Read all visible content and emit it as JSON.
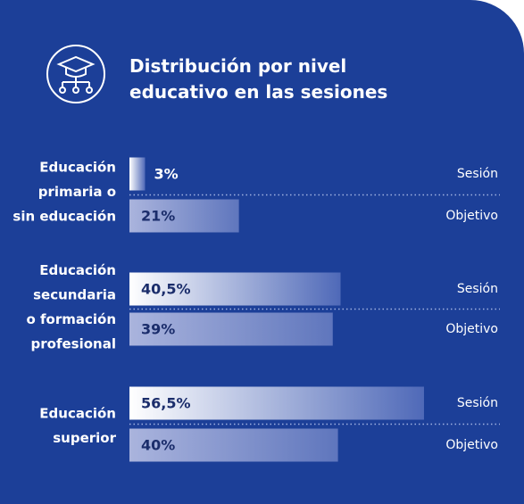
{
  "chart_data": {
    "type": "bar",
    "orientation": "horizontal",
    "title": "Distribución por nivel\neducativo en las sesiones",
    "categories": [
      "Educación\nprimaria o\nsin educación",
      "Educación\nsecundaria\no formación\nprofesional",
      "Educación\nsuperior"
    ],
    "series": [
      {
        "name": "Sesión",
        "color": "#ffffff",
        "values": [
          3,
          40.5,
          56.5
        ],
        "value_labels": [
          "3%",
          "40,5%",
          "56,5%"
        ]
      },
      {
        "name": "Objetivo",
        "color": "#aab4dd",
        "values": [
          21,
          39,
          40
        ],
        "value_labels": [
          "21%",
          "39%",
          "40%"
        ]
      }
    ]
  }
}
